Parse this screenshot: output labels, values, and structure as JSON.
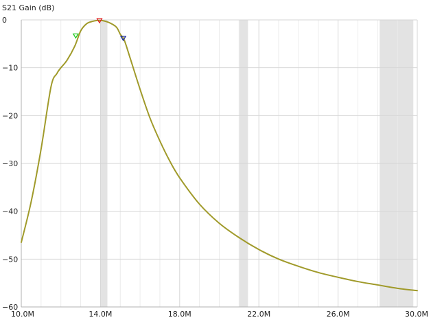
{
  "chart_data": {
    "type": "line",
    "title": "S21 Gain (dB)",
    "xlabel": "",
    "ylabel": "",
    "x_unit": "Hz",
    "xlim": [
      10000000,
      30000000
    ],
    "ylim": [
      -60,
      0
    ],
    "x_ticks": [
      10000000,
      14000000,
      18000000,
      22000000,
      26000000,
      30000000
    ],
    "x_tick_labels": [
      "10.0M",
      "14.0M",
      "18.0M",
      "22.0M",
      "26.0M",
      "30.0M"
    ],
    "x_minor_ticks": [
      11000000,
      12000000,
      13000000,
      15000000,
      16000000,
      17000000,
      19000000,
      20000000,
      21000000,
      23000000,
      24000000,
      25000000,
      27000000,
      28000000,
      29000000
    ],
    "y_ticks": [
      0,
      -10,
      -20,
      -30,
      -40,
      -50,
      -60
    ],
    "y_tick_labels": [
      "0",
      "−10",
      "−20",
      "−30",
      "−40",
      "−50",
      "−60"
    ],
    "grid": true,
    "shaded_bands": [
      {
        "x0": 14000000,
        "x1": 14350000
      },
      {
        "x0": 21000000,
        "x1": 21450000
      },
      {
        "x0": 28100000,
        "x1": 29800000
      }
    ],
    "series": [
      {
        "color": "#a09a2a",
        "x": [
          10000000,
          10500000,
          11000000,
          11500000,
          11800000,
          12000000,
          12300000,
          12700000,
          13000000,
          13300000,
          13600000,
          14000000,
          14400000,
          14800000,
          15000000,
          15200000,
          15500000,
          16000000,
          16500000,
          17000000,
          17500000,
          18000000,
          19000000,
          20000000,
          21000000,
          22000000,
          23000000,
          24000000,
          25000000,
          26000000,
          27000000,
          28000000,
          29000000,
          30000000
        ],
        "y": [
          -46.5,
          -38,
          -27,
          -14,
          -11.2,
          -10,
          -8.5,
          -5.5,
          -2.3,
          -0.8,
          -0.3,
          -0.1,
          -0.5,
          -1.5,
          -3,
          -4.2,
          -8,
          -14.5,
          -20.5,
          -25.3,
          -29.5,
          -33,
          -38.5,
          -42.5,
          -45.5,
          -48,
          -50,
          -51.5,
          -52.8,
          -53.8,
          -54.7,
          -55.4,
          -56.1,
          -56.6
        ]
      }
    ],
    "markers": [
      {
        "x": 12750000,
        "y": -3.5,
        "color": "#22cc22"
      },
      {
        "x": 13950000,
        "y": -0.3,
        "color": "#e02020"
      },
      {
        "x": 15150000,
        "y": -4.0,
        "color": "#1a2aa0"
      }
    ]
  }
}
